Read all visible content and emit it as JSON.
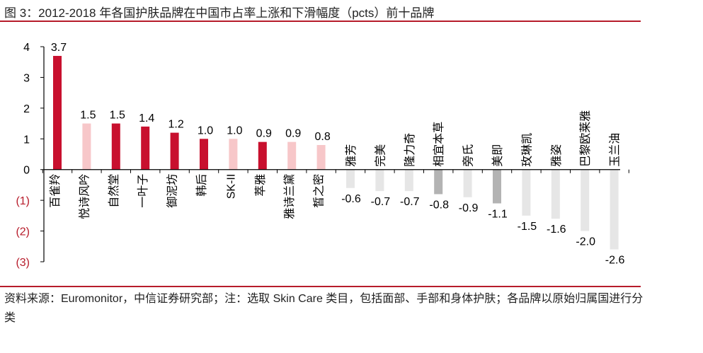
{
  "title": "图 3：2012-2018 年各国护肤品牌在中国市占率上涨和下滑幅度（pcts）前十品牌",
  "source": "资料来源：Euromonitor，中信证券研究部；注：选取 Skin Care 类目，包括面部、手部和身体护肤；各品牌以原始归属国进行分类",
  "colors": {
    "rule": "#b71c2b",
    "neg_tick": "#b71c2b"
  },
  "chart_data": {
    "type": "bar",
    "title": "2012-2018 年各国护肤品牌在中国市占率上涨和下滑幅度（pcts）前十品牌",
    "xlabel": "",
    "ylabel": "",
    "ylim": [
      -3,
      4
    ],
    "yticks": [
      4,
      3,
      2,
      1,
      0,
      -1,
      -2,
      -3
    ],
    "ytick_labels": [
      "4",
      "3",
      "2",
      "1",
      "0",
      "(1)",
      "(2)",
      "(3)"
    ],
    "grid": false,
    "legend": "none",
    "categories": [
      "百雀羚",
      "悦诗风吟",
      "自然堂",
      "一叶子",
      "御泥坊",
      "韩后",
      "SK-II",
      "萃雅",
      "雅诗兰黛",
      "皙之密",
      "雅芳",
      "完美",
      "隆力奇",
      "相宜本草",
      "旁氏",
      "美即",
      "玫琳凯",
      "雅姿",
      "巴黎欧莱雅",
      "玉兰油"
    ],
    "values": [
      3.7,
      1.5,
      1.5,
      1.4,
      1.2,
      1.0,
      1.0,
      0.9,
      0.9,
      0.8,
      -0.6,
      -0.7,
      -0.7,
      -0.8,
      -0.9,
      -1.1,
      -1.5,
      -1.6,
      -2.0,
      -2.6
    ],
    "value_labels": [
      "3.7",
      "1.5",
      "1.5",
      "1.4",
      "1.2",
      "1.0",
      "1.0",
      "0.9",
      "0.9",
      "0.8",
      "-0.6",
      "-0.7",
      "-0.7",
      "-0.8",
      "-0.9",
      "-1.1",
      "-1.5",
      "-1.6",
      "-2.0",
      "-2.6"
    ],
    "bar_colors": [
      "#c8102e",
      "#f7c7c9",
      "#c8102e",
      "#c8102e",
      "#c8102e",
      "#c8102e",
      "#f7c7c9",
      "#c8102e",
      "#f7c7c9",
      "#f7c7c9",
      "#e6e6e6",
      "#e6e6e6",
      "#e6e6e6",
      "#b3b3b3",
      "#e6e6e6",
      "#b3b3b3",
      "#e6e6e6",
      "#e6e6e6",
      "#e6e6e6",
      "#e6e6e6"
    ]
  }
}
